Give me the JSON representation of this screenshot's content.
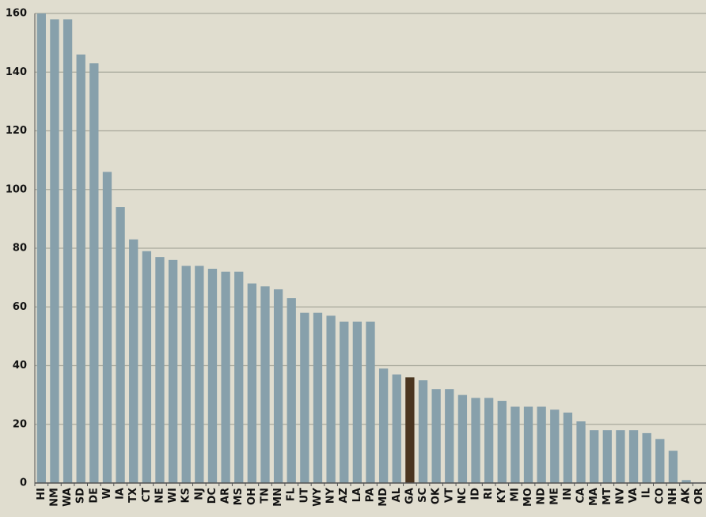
{
  "chart_data": {
    "type": "bar",
    "categories": [
      "HI",
      "NM",
      "WA",
      "SD",
      "DE",
      "W",
      "IA",
      "TX",
      "CT",
      "NE",
      "WI",
      "KS",
      "NJ",
      "DC",
      "AR",
      "MS",
      "OH",
      "TN",
      "MN",
      "FL",
      "UT",
      "WY",
      "NY",
      "AZ",
      "LA",
      "PA",
      "MD",
      "AL",
      "GA",
      "SC",
      "OK",
      "VT",
      "NC",
      "ID",
      "RI",
      "KY",
      "MI",
      "MO",
      "ND",
      "ME",
      "IN",
      "CA",
      "MA",
      "MT",
      "NV",
      "VA",
      "IL",
      "CO",
      "NH",
      "AK",
      "OR"
    ],
    "values": [
      160,
      158,
      158,
      146,
      143,
      106,
      94,
      83,
      79,
      77,
      76,
      74,
      74,
      73,
      72,
      72,
      68,
      67,
      66,
      63,
      58,
      58,
      57,
      55,
      55,
      55,
      39,
      37,
      36,
      35,
      32,
      32,
      30,
      29,
      29,
      28,
      26,
      26,
      26,
      25,
      24,
      21,
      18,
      18,
      18,
      18,
      17,
      15,
      11,
      1,
      0
    ],
    "colors": [
      "#87a0ab",
      "#87a0ab",
      "#87a0ab",
      "#87a0ab",
      "#87a0ab",
      "#87a0ab",
      "#87a0ab",
      "#87a0ab",
      "#87a0ab",
      "#87a0ab",
      "#87a0ab",
      "#87a0ab",
      "#87a0ab",
      "#87a0ab",
      "#87a0ab",
      "#87a0ab",
      "#87a0ab",
      "#87a0ab",
      "#87a0ab",
      "#87a0ab",
      "#87a0ab",
      "#87a0ab",
      "#87a0ab",
      "#87a0ab",
      "#87a0ab",
      "#87a0ab",
      "#87a0ab",
      "#87a0ab",
      "#4a3520",
      "#87a0ab",
      "#87a0ab",
      "#87a0ab",
      "#87a0ab",
      "#87a0ab",
      "#87a0ab",
      "#87a0ab",
      "#87a0ab",
      "#87a0ab",
      "#87a0ab",
      "#87a0ab",
      "#87a0ab",
      "#87a0ab",
      "#87a0ab",
      "#87a0ab",
      "#87a0ab",
      "#87a0ab",
      "#87a0ab",
      "#87a0ab",
      "#87a0ab",
      "#87a0ab",
      "#87a0ab"
    ],
    "ylim": [
      0,
      160
    ],
    "yticks": [
      0,
      20,
      40,
      60,
      80,
      100,
      120,
      140,
      160
    ],
    "grid": true
  }
}
